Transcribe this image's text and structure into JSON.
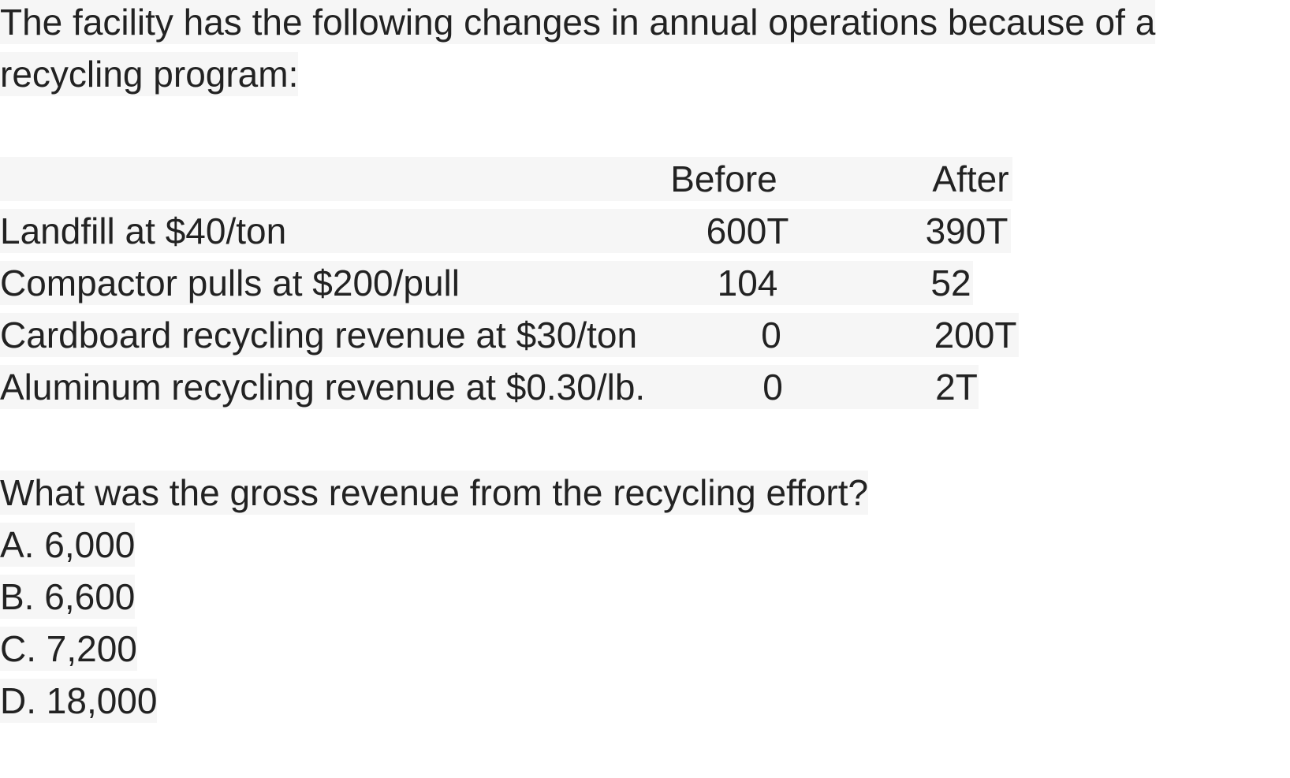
{
  "intro": {
    "line1": "The facility has the following changes in annual operations because of a",
    "line2": "recycling program:"
  },
  "table": {
    "headers": {
      "label": "",
      "before": "Before",
      "after": "After"
    },
    "rows": [
      {
        "label": "Landfill at $40/ton",
        "before": "600T",
        "after": "390T"
      },
      {
        "label": "Compactor pulls at $200/pull",
        "before": "104",
        "after": "52"
      },
      {
        "label": "Cardboard recycling revenue at $30/ton",
        "before": "0",
        "after": "200T"
      },
      {
        "label": "Aluminum recycling revenue at $0.30/lb.",
        "before": "0",
        "after": "2T"
      }
    ]
  },
  "question": "What was the gross revenue from the recycling effort?",
  "options": [
    "A. 6,000",
    "B. 6,600",
    "C. 7,200",
    "D. 18,000"
  ]
}
